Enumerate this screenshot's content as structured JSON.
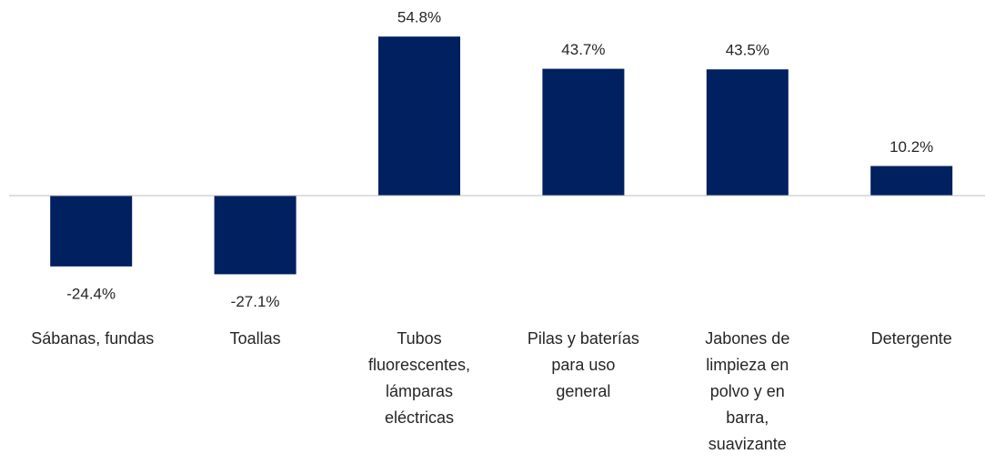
{
  "chart_data": {
    "type": "bar",
    "categories": [
      "Sábanas, fundas",
      "Toallas",
      "Tubos fluorescentes, lámparas eléctricas",
      "Pilas y baterías para uso general",
      "Jabones de limpieza en polvo y en barra, suavizante",
      "Detergente"
    ],
    "values": [
      -24.4,
      -27.1,
      54.8,
      43.7,
      43.5,
      10.2
    ],
    "value_labels": [
      "-24.4%",
      "-27.1%",
      "54.8%",
      "43.7%",
      "43.5%",
      "10.2%"
    ],
    "color": "#002060",
    "ylim": [
      -30,
      60
    ]
  }
}
